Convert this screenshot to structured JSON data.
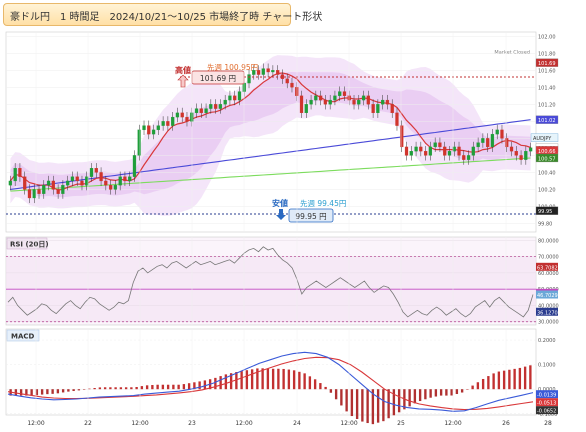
{
  "title": "豪ドル円　1 時間足　2024/10/21～10/25 市場終了時 チャート形状",
  "market_status": "Market Closed",
  "main": {
    "high_label": "高値",
    "high_value": "101.69 円",
    "prev_high_label": "先週 100.95円",
    "low_label": "安値",
    "low_value": "99.95 円",
    "prev_low_label": "先週 99.45円",
    "symbol_tag": "AUDJPY",
    "price_tags": {
      "high": "101.69",
      "ma_blue": "101.02",
      "last": "100.69",
      "ma_red": "100.66",
      "ma_green": "100.57",
      "low": "99.95"
    },
    "y_ticks": [
      "102.00",
      "101.80",
      "101.60",
      "101.40",
      "101.20",
      "101.00",
      "100.80",
      "100.60",
      "100.40",
      "100.20",
      "100.00",
      "99.80"
    ]
  },
  "rsi": {
    "label": "RSI (20日)",
    "y_ticks": [
      "80.0000",
      "70.0000",
      "60.0000",
      "50.0000",
      "40.0000",
      "30.0000"
    ],
    "tags": [
      "63.7082",
      "47.7442",
      "46.7029",
      "36.1270"
    ]
  },
  "macd": {
    "label": "MACD",
    "y_ticks": [
      "0.2000",
      "0.1000",
      "0.0000",
      "-0.1000"
    ],
    "tags": [
      "-0.0139",
      "-0.0513",
      "-0.0652"
    ]
  },
  "x_labels": [
    "12:00",
    "22",
    "12:00",
    "23",
    "12:00",
    "24",
    "12:00",
    "25",
    "12:00",
    "26",
    "28"
  ],
  "colors": {
    "up": "#1f9e3a",
    "down": "#d0342c",
    "ma_red": "#d9383a",
    "ma_blue": "#4a4ad8",
    "ma_green": "#7ddc5e",
    "band": "#d7a2e8",
    "hi_line": "#c23030",
    "lo_line": "#2a3c8f"
  },
  "chart_data": [
    {
      "type": "candlestick",
      "x_range": [
        "2024-10-21 06:00",
        "2024-10-26 00:00"
      ],
      "ylim": [
        99.7,
        102.05
      ],
      "high": 101.69,
      "low": 99.95,
      "last": 100.69,
      "close_approx": [
        100.3,
        100.45,
        100.35,
        100.2,
        100.1,
        100.2,
        100.15,
        100.25,
        100.3,
        100.2,
        100.15,
        100.25,
        100.3,
        100.35,
        100.3,
        100.25,
        100.35,
        100.45,
        100.4,
        100.3,
        100.25,
        100.2,
        100.25,
        100.35,
        100.3,
        100.35,
        100.6,
        100.9,
        100.95,
        100.85,
        100.9,
        100.95,
        101.0,
        100.95,
        101.05,
        101.1,
        101.05,
        101.0,
        101.1,
        101.15,
        101.1,
        101.15,
        101.2,
        101.15,
        101.2,
        101.25,
        101.3,
        101.25,
        101.35,
        101.45,
        101.55,
        101.6,
        101.55,
        101.62,
        101.58,
        101.6,
        101.55,
        101.5,
        101.45,
        101.4,
        101.3,
        101.1,
        101.2,
        101.25,
        101.3,
        101.25,
        101.2,
        101.25,
        101.3,
        101.35,
        101.3,
        101.25,
        101.2,
        101.25,
        101.3,
        101.2,
        101.1,
        101.2,
        101.25,
        101.2,
        101.1,
        100.95,
        100.7,
        100.6,
        100.65,
        100.7,
        100.65,
        100.6,
        100.7,
        100.75,
        100.7,
        100.6,
        100.65,
        100.7,
        100.6,
        100.55,
        100.6,
        100.7,
        100.75,
        100.8,
        100.7,
        100.85,
        100.9,
        100.8,
        100.7,
        100.65,
        100.6,
        100.55,
        100.65,
        100.69
      ]
    },
    {
      "type": "line",
      "title": "RSI (20日)",
      "ylim": [
        28,
        82
      ],
      "levels": [
        70,
        30
      ],
      "last": 46.7029,
      "values": [
        42,
        45,
        40,
        37,
        34,
        36,
        38,
        41,
        40,
        37,
        35,
        38,
        41,
        43,
        40,
        38,
        42,
        45,
        44,
        41,
        39,
        37,
        39,
        42,
        41,
        43,
        54,
        61,
        63,
        60,
        62,
        64,
        65,
        63,
        66,
        67,
        65,
        63,
        65,
        67,
        65,
        66,
        67,
        65,
        66,
        67,
        68,
        66,
        69,
        72,
        74,
        75,
        73,
        76,
        74,
        75,
        71,
        68,
        66,
        63,
        56,
        47,
        51,
        53,
        55,
        53,
        51,
        53,
        55,
        57,
        55,
        53,
        51,
        53,
        55,
        51,
        48,
        50,
        52,
        51,
        47,
        42,
        36,
        33,
        35,
        37,
        35,
        34,
        37,
        39,
        37,
        34,
        36,
        38,
        35,
        33,
        35,
        39,
        41,
        43,
        39,
        43,
        45,
        42,
        39,
        37,
        35,
        33,
        37,
        46.7
      ]
    },
    {
      "type": "line",
      "title": "MACD",
      "ylim": [
        -0.105,
        0.245
      ],
      "values": [
        -0.02,
        -0.028,
        -0.035,
        -0.04,
        -0.043,
        -0.042,
        -0.04,
        -0.036,
        -0.032,
        -0.03,
        -0.028,
        -0.026,
        -0.02,
        -0.016,
        -0.012,
        -0.008,
        0.0,
        0.01,
        0.025,
        0.045,
        0.065,
        0.085,
        0.105,
        0.12,
        0.135,
        0.145,
        0.15,
        0.145,
        0.13,
        0.1,
        0.06,
        0.02,
        -0.02,
        -0.05,
        -0.065,
        -0.075,
        -0.08,
        -0.082,
        -0.085,
        -0.09,
        -0.088,
        -0.075,
        -0.06,
        -0.045,
        -0.035,
        -0.025,
        -0.0139
      ],
      "signal": [
        -0.01,
        -0.018,
        -0.025,
        -0.032,
        -0.036,
        -0.038,
        -0.038,
        -0.037,
        -0.035,
        -0.033,
        -0.031,
        -0.029,
        -0.026,
        -0.023,
        -0.019,
        -0.015,
        -0.01,
        -0.003,
        0.008,
        0.022,
        0.038,
        0.055,
        0.072,
        0.088,
        0.103,
        0.115,
        0.125,
        0.13,
        0.128,
        0.12,
        0.1,
        0.07,
        0.035,
        0.0,
        -0.025,
        -0.045,
        -0.06,
        -0.068,
        -0.075,
        -0.08,
        -0.083,
        -0.082,
        -0.078,
        -0.072,
        -0.065,
        -0.058,
        -0.0513
      ]
    }
  ]
}
